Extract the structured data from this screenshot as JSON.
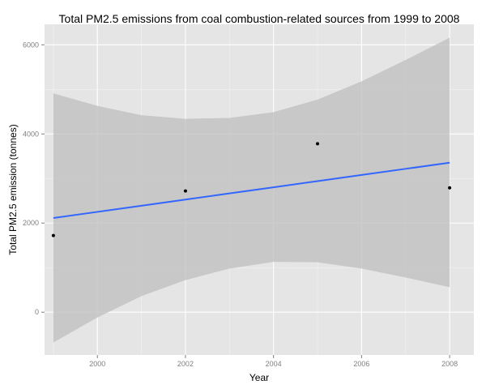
{
  "chart_data": {
    "type": "scatter",
    "title": "Total PM2.5 emissions from coal combustion-related sources from 1999 to 2008",
    "xlabel": "Year",
    "ylabel": "Total PM2.5 emission (tonnes)",
    "xlim": [
      1998.8,
      2008.55
    ],
    "ylim": [
      -960,
      6460
    ],
    "x_ticks": [
      2000,
      2002,
      2004,
      2006,
      2008
    ],
    "y_ticks": [
      0,
      2000,
      4000,
      6000
    ],
    "grid": true,
    "legend": "none",
    "points": [
      {
        "x": 1999,
        "y": 1720
      },
      {
        "x": 2002,
        "y": 2720
      },
      {
        "x": 2005,
        "y": 3780
      },
      {
        "x": 2008,
        "y": 2790
      }
    ],
    "fit": {
      "method": "lm",
      "x": [
        1999,
        2000,
        2001,
        2002,
        2003,
        2004,
        2005,
        2006,
        2007,
        2008
      ],
      "y": [
        2114,
        2251,
        2389,
        2527,
        2665,
        2803,
        2941,
        3079,
        3217,
        3355
      ],
      "lower": [
        -680,
        -120,
        360,
        720,
        980,
        1130,
        1120,
        980,
        780,
        560
      ],
      "upper": [
        4910,
        4630,
        4420,
        4340,
        4360,
        4490,
        4770,
        5180,
        5660,
        6160
      ]
    },
    "colors": {
      "panel": "#e5e5e5",
      "grid_major": "#ffffff",
      "grid_minor": "#f2f2f2",
      "ribbon": "#bdbdbd",
      "fit_line": "#3366ff",
      "point": "#000000"
    }
  }
}
